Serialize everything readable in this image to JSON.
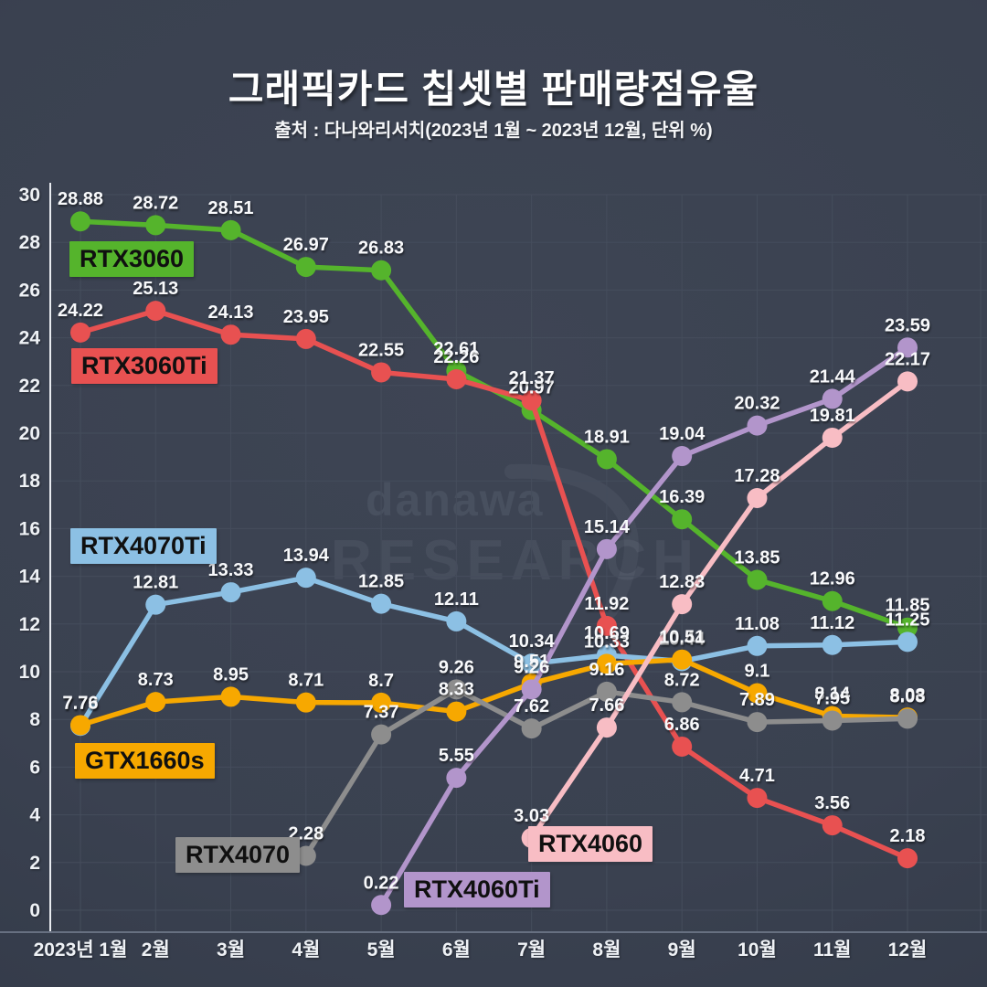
{
  "header": {
    "title": "그래픽카드 칩셋별 판매량점유율",
    "subtitle": "출처 : 다나와리서치(2023년 1월 ~ 2023년 12월, 단위 %)"
  },
  "watermark": {
    "line1": "danawa",
    "line2": "RESEARCH"
  },
  "chart_data": {
    "type": "line",
    "title": "그래픽카드 칩셋별 판매량점유율",
    "source_note": "출처 : 다나와리서치(2023년 1월 ~ 2023년 12월, 단위 %)",
    "unit": "%",
    "categories": [
      "2023년 1월",
      "2월",
      "3월",
      "4월",
      "5월",
      "6월",
      "7월",
      "8월",
      "9월",
      "10월",
      "11월",
      "12월"
    ],
    "ylim": [
      0,
      30
    ],
    "ytick_step": 2,
    "grid": true,
    "value_labels": true,
    "legend_position": "on-chart-colored-boxes",
    "series": [
      {
        "name": "RTX3060",
        "color": "#55B42C",
        "values": [
          28.88,
          28.72,
          28.51,
          26.97,
          26.83,
          22.61,
          20.97,
          18.91,
          16.39,
          13.85,
          12.96,
          11.85
        ]
      },
      {
        "name": "RTX3060Ti",
        "color": "#E85151",
        "values": [
          24.22,
          25.13,
          24.13,
          23.95,
          22.55,
          22.26,
          21.37,
          11.92,
          6.86,
          4.71,
          3.56,
          2.18
        ]
      },
      {
        "name": "RTX4070Ti",
        "color": "#8CC0E4",
        "values": [
          7.73,
          12.81,
          13.33,
          13.94,
          12.85,
          12.11,
          10.34,
          10.69,
          10.44,
          11.08,
          11.12,
          11.25
        ]
      },
      {
        "name": "GTX1660s",
        "color": "#F7A800",
        "values": [
          7.76,
          8.73,
          8.95,
          8.71,
          8.7,
          8.33,
          9.51,
          10.33,
          10.51,
          9.1,
          8.14,
          8.08
        ]
      },
      {
        "name": "RTX4070",
        "color": "#8D8D8D",
        "values": [
          null,
          null,
          null,
          2.28,
          7.37,
          9.26,
          7.62,
          9.16,
          8.72,
          7.89,
          7.95,
          8.03
        ]
      },
      {
        "name": "RTX4060Ti",
        "color": "#B295CB",
        "values": [
          null,
          null,
          null,
          null,
          0.22,
          5.55,
          9.26,
          15.14,
          19.04,
          20.32,
          21.44,
          23.59
        ]
      },
      {
        "name": "RTX4060",
        "color": "#F8BDC4",
        "values": [
          null,
          null,
          null,
          null,
          null,
          null,
          3.03,
          7.66,
          12.83,
          17.28,
          19.81,
          22.17
        ]
      }
    ]
  }
}
